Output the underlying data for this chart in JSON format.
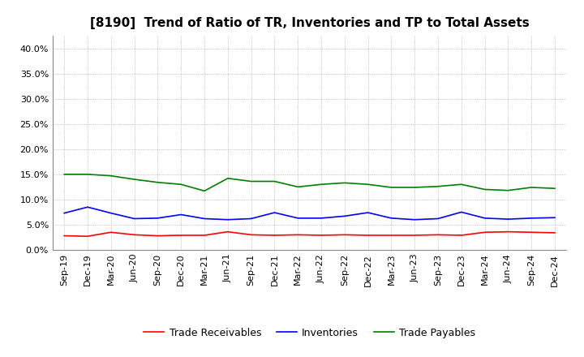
{
  "title": "[8190]  Trend of Ratio of TR, Inventories and TP to Total Assets",
  "x_labels": [
    "Sep-19",
    "Dec-19",
    "Mar-20",
    "Jun-20",
    "Sep-20",
    "Dec-20",
    "Mar-21",
    "Jun-21",
    "Sep-21",
    "Dec-21",
    "Mar-22",
    "Jun-22",
    "Sep-22",
    "Dec-22",
    "Mar-23",
    "Jun-23",
    "Sep-23",
    "Dec-23",
    "Mar-24",
    "Jun-24",
    "Sep-24",
    "Dec-24"
  ],
  "trade_receivables": [
    0.028,
    0.027,
    0.035,
    0.03,
    0.028,
    0.029,
    0.029,
    0.036,
    0.03,
    0.029,
    0.03,
    0.029,
    0.03,
    0.029,
    0.029,
    0.029,
    0.03,
    0.029,
    0.035,
    0.036,
    0.035,
    0.034
  ],
  "inventories": [
    0.073,
    0.085,
    0.073,
    0.062,
    0.063,
    0.07,
    0.062,
    0.06,
    0.062,
    0.074,
    0.063,
    0.063,
    0.067,
    0.074,
    0.063,
    0.06,
    0.062,
    0.075,
    0.063,
    0.061,
    0.063,
    0.064
  ],
  "trade_payables": [
    0.15,
    0.15,
    0.147,
    0.14,
    0.134,
    0.13,
    0.117,
    0.142,
    0.136,
    0.136,
    0.125,
    0.13,
    0.133,
    0.13,
    0.124,
    0.124,
    0.126,
    0.13,
    0.12,
    0.118,
    0.124,
    0.122
  ],
  "tr_color": "#ff0000",
  "inv_color": "#0000ff",
  "tp_color": "#008000",
  "ylim": [
    0.0,
    0.425
  ],
  "yticks": [
    0.0,
    0.05,
    0.1,
    0.15,
    0.2,
    0.25,
    0.3,
    0.35,
    0.4
  ],
  "background_color": "#ffffff",
  "grid_color": "#999999",
  "legend_labels": [
    "Trade Receivables",
    "Inventories",
    "Trade Payables"
  ],
  "title_fontsize": 11,
  "tick_fontsize": 8,
  "legend_fontsize": 9
}
